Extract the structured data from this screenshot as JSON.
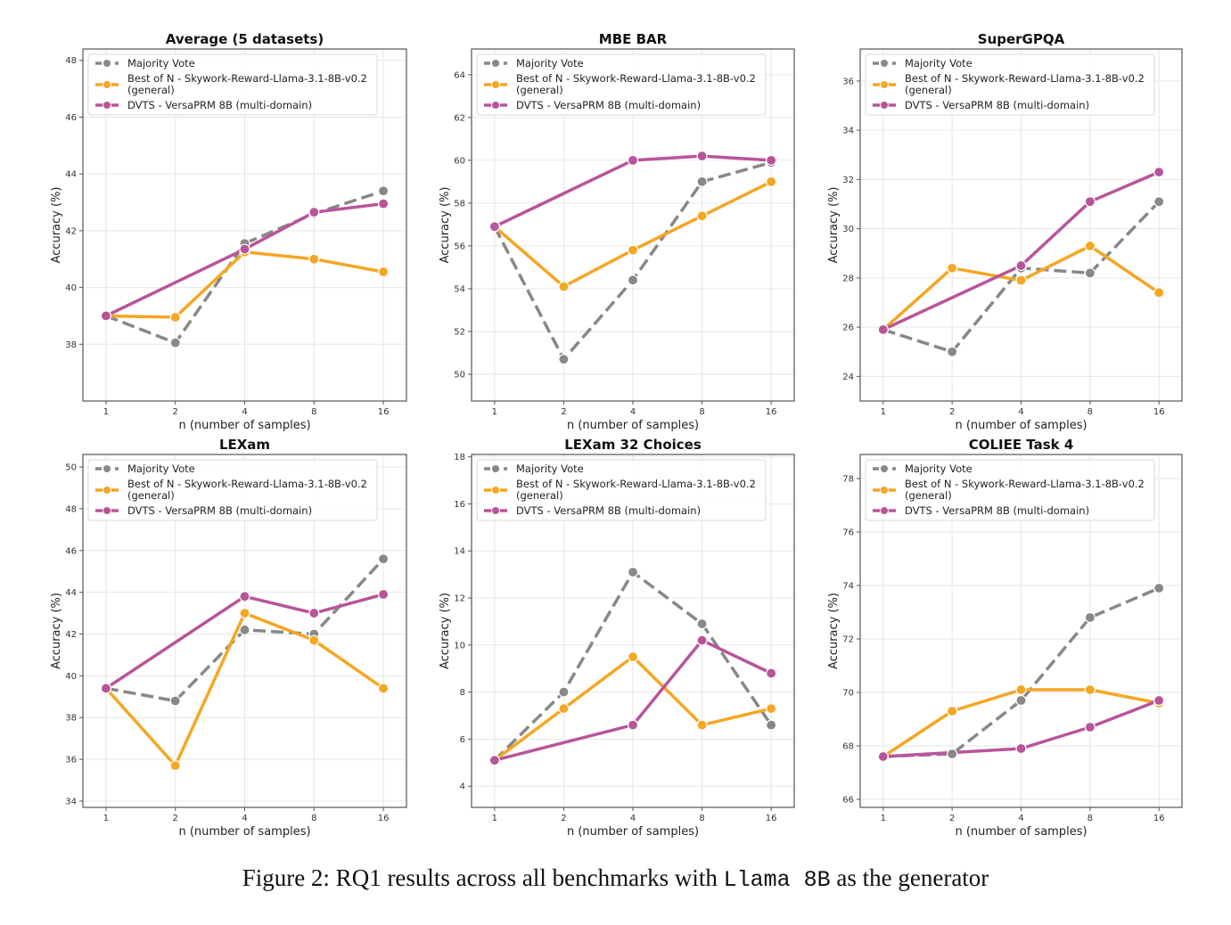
{
  "caption": {
    "prefix": "Figure 2: RQ1 results across all benchmarks with ",
    "model": "Llama 8B",
    "suffix": " as the generator"
  },
  "legend_entries": [
    {
      "key": "mv",
      "label_lines": [
        "Majority Vote"
      ],
      "color": "#888888",
      "dashed": true
    },
    {
      "key": "bon",
      "label_lines": [
        "Best of N - Skywork-Reward-Llama-3.1-8B-v0.2",
        "(general)"
      ],
      "color": "#F5A623",
      "dashed": false
    },
    {
      "key": "dvts",
      "label_lines": [
        "DVTS - VersaPRM 8B (multi-domain)"
      ],
      "color": "#B8559A",
      "dashed": false
    }
  ],
  "chart_data": [
    {
      "type": "line",
      "title": "Average (5 datasets)",
      "xlabel": "n (number of samples)",
      "ylabel": "Accuracy (%)",
      "x": [
        1,
        2,
        4,
        8,
        16
      ],
      "xscale": "log2",
      "ylim": [
        36.0,
        48.4
      ],
      "yticks": [
        38,
        40,
        42,
        44,
        46,
        48
      ],
      "grid": true,
      "legend": "top-left",
      "series": [
        {
          "name": "Majority Vote",
          "key": "mv",
          "x": [
            1,
            2,
            4,
            8,
            16
          ],
          "values": [
            39.0,
            38.05,
            41.55,
            42.6,
            43.4
          ]
        },
        {
          "name": "Best of N - Skywork-Reward-Llama-3.1-8B-v0.2 (general)",
          "key": "bon",
          "x": [
            1,
            2,
            4,
            8,
            16
          ],
          "values": [
            39.0,
            38.95,
            41.25,
            41.0,
            40.55
          ]
        },
        {
          "name": "DVTS - VersaPRM 8B (multi-domain)",
          "key": "dvts",
          "x": [
            1,
            4,
            8,
            16
          ],
          "values": [
            39.0,
            41.35,
            42.65,
            42.95
          ]
        }
      ]
    },
    {
      "type": "line",
      "title": "MBE BAR",
      "xlabel": "n (number of samples)",
      "ylabel": "Accuracy (%)",
      "x": [
        1,
        2,
        4,
        8,
        16
      ],
      "xscale": "log2",
      "ylim": [
        48.75,
        65.2
      ],
      "yticks": [
        50,
        52,
        54,
        56,
        58,
        60,
        62,
        64
      ],
      "grid": true,
      "legend": "top-left",
      "series": [
        {
          "name": "Majority Vote",
          "key": "mv",
          "x": [
            1,
            2,
            4,
            8,
            16
          ],
          "values": [
            56.9,
            50.7,
            54.4,
            59.0,
            59.9
          ]
        },
        {
          "name": "Best of N - Skywork-Reward-Llama-3.1-8B-v0.2 (general)",
          "key": "bon",
          "x": [
            1,
            2,
            4,
            8,
            16
          ],
          "values": [
            56.9,
            54.1,
            55.8,
            57.4,
            59.0
          ]
        },
        {
          "name": "DVTS - VersaPRM 8B (multi-domain)",
          "key": "dvts",
          "x": [
            1,
            4,
            8,
            16
          ],
          "values": [
            56.9,
            60.0,
            60.2,
            60.0
          ]
        }
      ]
    },
    {
      "type": "line",
      "title": "SuperGPQA",
      "xlabel": "n (number of samples)",
      "ylabel": "Accuracy (%)",
      "x": [
        1,
        2,
        4,
        8,
        16
      ],
      "xscale": "log2",
      "ylim": [
        23.0,
        37.3
      ],
      "yticks": [
        24,
        26,
        28,
        30,
        32,
        34,
        36
      ],
      "grid": true,
      "legend": "top-left",
      "series": [
        {
          "name": "Majority Vote",
          "key": "mv",
          "x": [
            1,
            2,
            4,
            8,
            16
          ],
          "values": [
            25.9,
            25.0,
            28.4,
            28.2,
            31.1
          ]
        },
        {
          "name": "Best of N - Skywork-Reward-Llama-3.1-8B-v0.2 (general)",
          "key": "bon",
          "x": [
            1,
            2,
            4,
            8,
            16
          ],
          "values": [
            25.9,
            28.4,
            27.9,
            29.3,
            27.4
          ]
        },
        {
          "name": "DVTS - VersaPRM 8B (multi-domain)",
          "key": "dvts",
          "x": [
            1,
            4,
            8,
            16
          ],
          "values": [
            25.9,
            28.5,
            31.1,
            32.3
          ]
        }
      ]
    },
    {
      "type": "line",
      "title": "LEXam",
      "xlabel": "n (number of samples)",
      "ylabel": "Accuracy (%)",
      "x": [
        1,
        2,
        4,
        8,
        16
      ],
      "xscale": "log2",
      "ylim": [
        33.7,
        50.6
      ],
      "yticks": [
        34,
        36,
        38,
        40,
        42,
        44,
        46,
        48,
        50
      ],
      "grid": true,
      "legend": "top-left",
      "series": [
        {
          "name": "Majority Vote",
          "key": "mv",
          "x": [
            1,
            2,
            4,
            8,
            16
          ],
          "values": [
            39.4,
            38.8,
            42.2,
            42.0,
            45.6
          ]
        },
        {
          "name": "Best of N - Skywork-Reward-Llama-3.1-8B-v0.2 (general)",
          "key": "bon",
          "x": [
            1,
            2,
            4,
            8,
            16
          ],
          "values": [
            39.4,
            35.7,
            43.0,
            41.7,
            39.4
          ]
        },
        {
          "name": "DVTS - VersaPRM 8B (multi-domain)",
          "key": "dvts",
          "x": [
            1,
            4,
            8,
            16
          ],
          "values": [
            39.4,
            43.8,
            43.0,
            43.9
          ]
        }
      ]
    },
    {
      "type": "line",
      "title": "LEXam 32 Choices",
      "xlabel": "n (number of samples)",
      "ylabel": "Accuracy (%)",
      "x": [
        1,
        2,
        4,
        8,
        16
      ],
      "xscale": "log2",
      "ylim": [
        3.1,
        18.1
      ],
      "yticks": [
        4,
        6,
        8,
        10,
        12,
        14,
        16,
        18
      ],
      "grid": true,
      "legend": "top-left",
      "series": [
        {
          "name": "Majority Vote",
          "key": "mv",
          "x": [
            1,
            2,
            4,
            8,
            16
          ],
          "values": [
            5.1,
            8.0,
            13.1,
            10.9,
            6.6
          ]
        },
        {
          "name": "Best of N - Skywork-Reward-Llama-3.1-8B-v0.2 (general)",
          "key": "bon",
          "x": [
            1,
            2,
            4,
            8,
            16
          ],
          "values": [
            5.1,
            7.3,
            9.5,
            6.6,
            7.3
          ]
        },
        {
          "name": "DVTS - VersaPRM 8B (multi-domain)",
          "key": "dvts",
          "x": [
            1,
            4,
            8,
            16
          ],
          "values": [
            5.1,
            6.6,
            10.2,
            8.8
          ]
        }
      ]
    },
    {
      "type": "line",
      "title": "COLIEE Task 4",
      "xlabel": "n (number of samples)",
      "ylabel": "Accuracy (%)",
      "x": [
        1,
        2,
        4,
        8,
        16
      ],
      "xscale": "log2",
      "ylim": [
        65.7,
        78.9
      ],
      "yticks": [
        66,
        68,
        70,
        72,
        74,
        76,
        78
      ],
      "grid": true,
      "legend": "top-left",
      "series": [
        {
          "name": "Majority Vote",
          "key": "mv",
          "x": [
            1,
            2,
            4,
            8,
            16
          ],
          "values": [
            67.6,
            67.7,
            69.7,
            72.8,
            73.9
          ]
        },
        {
          "name": "Best of N - Skywork-Reward-Llama-3.1-8B-v0.2 (general)",
          "key": "bon",
          "x": [
            1,
            2,
            4,
            8,
            16
          ],
          "values": [
            67.6,
            69.3,
            70.1,
            70.1,
            69.6
          ]
        },
        {
          "name": "DVTS - VersaPRM 8B (multi-domain)",
          "key": "dvts",
          "x": [
            1,
            4,
            8,
            16
          ],
          "values": [
            67.6,
            67.9,
            68.7,
            69.7
          ]
        }
      ]
    }
  ]
}
